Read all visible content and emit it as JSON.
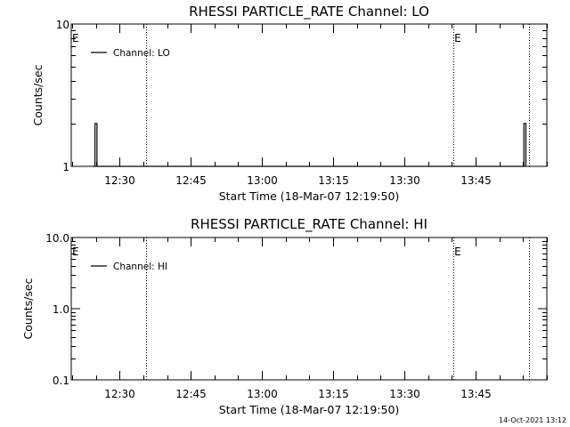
{
  "chart_data": [
    {
      "type": "line",
      "title": "RHESSI PARTICLE_RATE Channel: LO",
      "xlabel": "Start Time (18-Mar-07 12:19:50)",
      "ylabel": "Counts/sec",
      "y_scale": "log",
      "ylim": [
        1,
        10
      ],
      "y_ticks": [
        "10",
        "1"
      ],
      "x_ticks": [
        "12:30",
        "12:45",
        "13:00",
        "13:15",
        "13:30",
        "13:45"
      ],
      "xlim": [
        "12:19:50",
        "14:00:00"
      ],
      "legend": "top-left",
      "series": [
        {
          "name": "Channel: LO",
          "x": [
            "12:24:20",
            "12:24:50",
            "12:25:15",
            "13:54:40",
            "13:55:10",
            "13:55:35"
          ],
          "y": [
            1,
            2,
            1,
            1,
            2,
            1
          ]
        }
      ],
      "markers": [
        {
          "label": "E",
          "time": "12:19:50"
        },
        {
          "label": "E",
          "time": "13:40:20"
        }
      ],
      "dotted_lines": [
        "12:35:30",
        "13:40:20",
        "13:56:10"
      ]
    },
    {
      "type": "line",
      "title": "RHESSI PARTICLE_RATE Channel: HI",
      "xlabel": "Start Time (18-Mar-07 12:19:50)",
      "ylabel": "Counts/sec",
      "y_scale": "log",
      "ylim": [
        0.1,
        10
      ],
      "y_ticks": [
        "10.0",
        "1.0",
        "0.1"
      ],
      "x_ticks": [
        "12:30",
        "12:45",
        "13:00",
        "13:15",
        "13:30",
        "13:45"
      ],
      "xlim": [
        "12:19:50",
        "14:00:00"
      ],
      "legend": "top-left",
      "series": [
        {
          "name": "Channel: HI",
          "x": [],
          "y": []
        }
      ],
      "markers": [
        {
          "label": "E",
          "time": "12:19:50"
        },
        {
          "label": "E",
          "time": "13:40:20"
        }
      ],
      "dotted_lines": [
        "12:35:30",
        "13:40:20",
        "13:56:10"
      ]
    }
  ],
  "footer": {
    "timestamp": "14-Oct-2021 13:12"
  },
  "colors": {
    "background": "#ffffff",
    "foreground": "#000000"
  }
}
